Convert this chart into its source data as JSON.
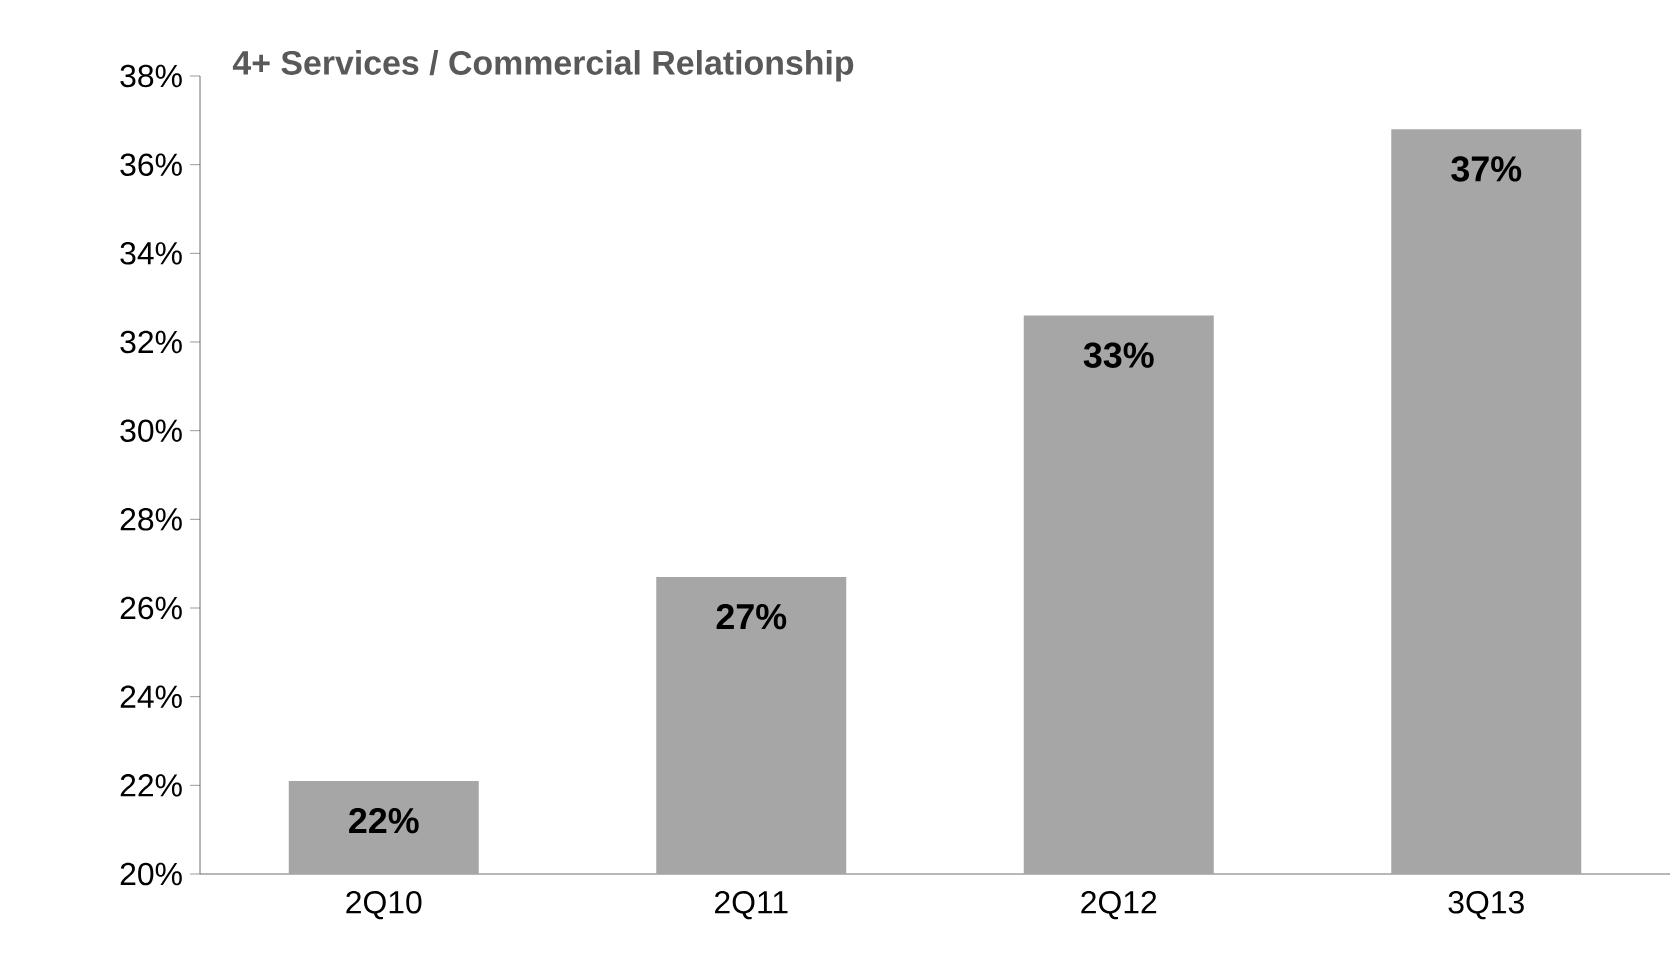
{
  "chart_data": {
    "type": "bar",
    "title": "4+ Services / Commercial Relationship",
    "categories": [
      "2Q10",
      "2Q11",
      "2Q12",
      "3Q13"
    ],
    "values": [
      22.1,
      26.7,
      32.6,
      36.8
    ],
    "value_labels": [
      "22%",
      "27%",
      "33%",
      "37%"
    ],
    "color": "#a6a6a6",
    "ylim": [
      20,
      38
    ],
    "yticks": [
      {
        "value": 20,
        "label": "20%"
      },
      {
        "value": 22,
        "label": "22%"
      },
      {
        "value": 24,
        "label": "24%"
      },
      {
        "value": 26,
        "label": "26%"
      },
      {
        "value": 28,
        "label": "28%"
      },
      {
        "value": 30,
        "label": "30%"
      },
      {
        "value": 32,
        "label": "32%"
      },
      {
        "value": 34,
        "label": "34%"
      },
      {
        "value": 36,
        "label": "36%"
      },
      {
        "value": 38,
        "label": "38%"
      }
    ],
    "grid": false
  }
}
